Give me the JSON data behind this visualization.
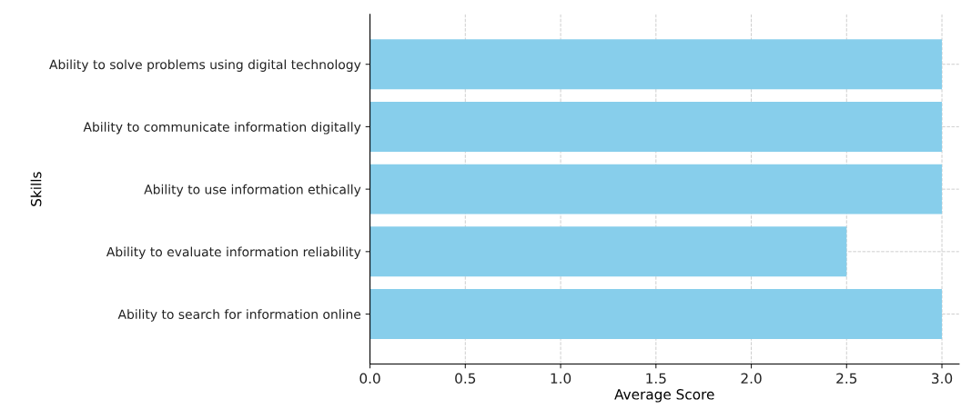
{
  "chart_data": {
    "type": "bar",
    "orientation": "horizontal",
    "xlabel": "Average Score",
    "ylabel": "Skills",
    "categories": [
      "Ability to solve problems using digital technology",
      "Ability to communicate information digitally",
      "Ability to use information ethically",
      "Ability to evaluate information reliability",
      "Ability to search for information online"
    ],
    "values": [
      3.0,
      3.0,
      3.0,
      2.5,
      3.0
    ],
    "color": "#87ceeb",
    "xlim": [
      0,
      3.09
    ],
    "xticks": [
      {
        "value": 0,
        "label": "0.0"
      },
      {
        "value": 0.5,
        "label": "0.5"
      },
      {
        "value": 1,
        "label": "1.0"
      },
      {
        "value": 1.5,
        "label": "1.5"
      },
      {
        "value": 2,
        "label": "2.0"
      },
      {
        "value": 2.5,
        "label": "2.5"
      },
      {
        "value": 3,
        "label": "3.0"
      }
    ],
    "grid": true,
    "line_style": "dashed"
  }
}
